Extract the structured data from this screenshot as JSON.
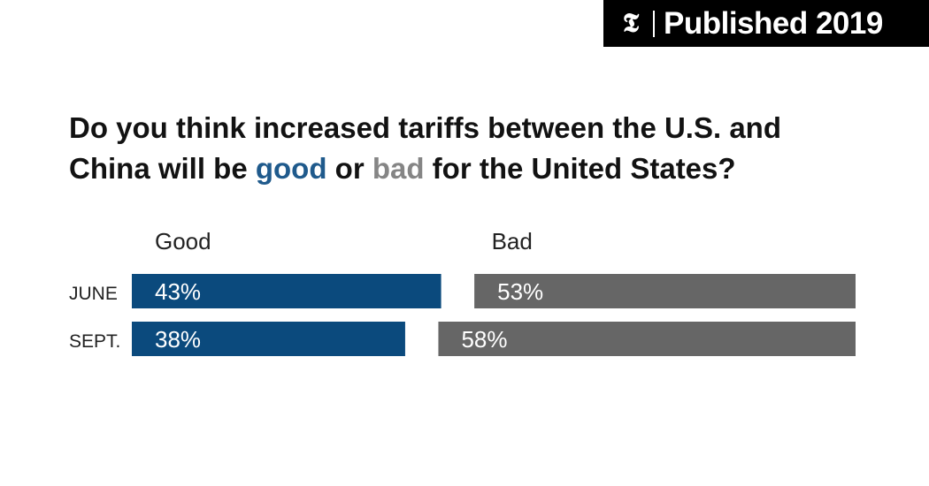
{
  "badge": {
    "logo": "𝕿",
    "label": "Published 2019"
  },
  "question": {
    "part1": "Do you think increased tariffs between the U.S. and China will be ",
    "good_word": "good",
    "part2": " or ",
    "bad_word": "bad",
    "part3": " for the United States?"
  },
  "colors": {
    "good": "#0b4a7d",
    "bad": "#666666"
  },
  "chart_data": {
    "type": "bar",
    "orientation": "diverging-horizontal",
    "categories": [
      "JUNE",
      "SEPT."
    ],
    "series": [
      {
        "name": "Good",
        "values": [
          43,
          38
        ]
      },
      {
        "name": "Bad",
        "values": [
          53,
          58
        ]
      }
    ],
    "value_labels": {
      "Good": [
        "43%",
        "38%"
      ],
      "Bad": [
        "53%",
        "58%"
      ]
    },
    "unit": "%",
    "xlim": [
      0,
      100
    ]
  }
}
